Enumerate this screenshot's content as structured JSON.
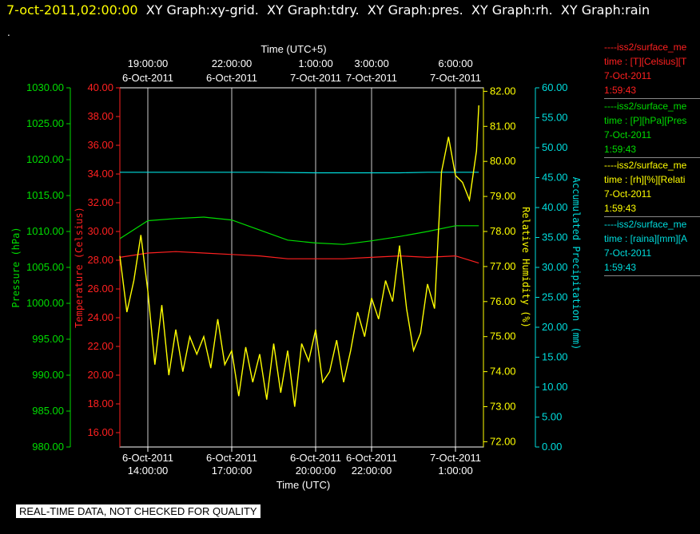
{
  "header": {
    "timestamp": "7-oct-2011,02:00:00",
    "title": "XY Graph:xy-grid.  XY Graph:tdry.  XY Graph:pres.  XY Graph:rh.  XY Graph:rain",
    "dot": "."
  },
  "notice": "REAL-TIME DATA, NOT CHECKED FOR QUALITY",
  "legend": [
    {
      "name": "----iss2/surface_me",
      "units": "time : [T][Celsius][T",
      "date": "7-Oct-2011",
      "time": "1:59:43",
      "color": "#ff2020"
    },
    {
      "name": "----iss2/surface_me",
      "units": "time : [P][hPa][Pres",
      "date": "7-Oct-2011",
      "time": "1:59:43",
      "color": "#00dd00"
    },
    {
      "name": "----iss2/surface_me",
      "units": "time : [rh][%][Relati",
      "date": "7-Oct-2011",
      "time": "1:59:43",
      "color": "#ffff00"
    },
    {
      "name": "----iss2/surface_me",
      "units": "time : [raina][mm][A",
      "date": "7-Oct-2011",
      "time": "1:59:43",
      "color": "#00dddd"
    }
  ],
  "chart_data": {
    "type": "line",
    "xlabel": "Time (UTC)",
    "x2label": "Time (UTC+5)",
    "xlim": [
      "2011-10-06 13:00",
      "2011-10-07 02:00"
    ],
    "grid": true,
    "bottom_ticks": [
      {
        "date": "6-Oct-2011",
        "time": "14:00:00",
        "x": "2011-10-06 14:00"
      },
      {
        "date": "6-Oct-2011",
        "time": "17:00:00",
        "x": "2011-10-06 17:00"
      },
      {
        "date": "6-Oct-2011",
        "time": "20:00:00",
        "x": "2011-10-06 20:00"
      },
      {
        "date": "6-Oct-2011",
        "time": "22:00:00",
        "x": "2011-10-06 22:00"
      },
      {
        "date": "7-Oct-2011",
        "time": "1:00:00",
        "x": "2011-10-07 01:00"
      }
    ],
    "top_ticks": [
      {
        "time": "19:00:00",
        "date": "6-Oct-2011",
        "x": "2011-10-06 14:00"
      },
      {
        "time": "22:00:00",
        "date": "6-Oct-2011",
        "x": "2011-10-06 17:00"
      },
      {
        "time": "1:00:00",
        "date": "7-Oct-2011",
        "x": "2011-10-06 20:00"
      },
      {
        "time": "3:00:00",
        "date": "7-Oct-2011",
        "x": "2011-10-06 22:00"
      },
      {
        "time": "6:00:00",
        "date": "7-Oct-2011",
        "x": "2011-10-07 01:00"
      }
    ],
    "axes": [
      {
        "id": "pres",
        "label": "Pressure (hPa)",
        "color": "#00dd00",
        "min": 980,
        "max": 1030,
        "ticks": [
          "980.00",
          "985.00",
          "990.00",
          "995.00",
          "1000.00",
          "1005.00",
          "1010.00",
          "1015.00",
          "1020.00",
          "1025.00",
          "1030.00"
        ]
      },
      {
        "id": "temp",
        "label": "Temperature (Celsius)",
        "color": "#ff2020",
        "min": 15,
        "max": 40,
        "ticks": [
          "16.00",
          "18.00",
          "20.00",
          "22.00",
          "24.00",
          "26.00",
          "28.00",
          "30.00",
          "32.00",
          "34.00",
          "36.00",
          "38.00",
          "40.00"
        ]
      },
      {
        "id": "rh",
        "label": "Relative Humidity (%)",
        "color": "#ffff00",
        "min": 71.85,
        "max": 82.1,
        "ticks": [
          "72.00",
          "73.00",
          "74.00",
          "75.00",
          "76.00",
          "77.00",
          "78.00",
          "79.00",
          "80.00",
          "81.00",
          "82.00"
        ]
      },
      {
        "id": "rain",
        "label": "Accumulated Precipitation (mm)",
        "color": "#00dddd",
        "min": 0,
        "max": 60,
        "ticks": [
          "0.00",
          "5.00",
          "10.00",
          "15.00",
          "20.00",
          "25.00",
          "30.00",
          "35.00",
          "40.00",
          "45.00",
          "50.00",
          "55.00",
          "60.00"
        ]
      }
    ],
    "series": [
      {
        "axis": "temp",
        "color": "#ff2020",
        "points": [
          [
            "2011-10-06 13:00",
            28.2
          ],
          [
            "2011-10-06 14:00",
            28.5
          ],
          [
            "2011-10-06 15:00",
            28.6
          ],
          [
            "2011-10-06 16:00",
            28.5
          ],
          [
            "2011-10-06 17:00",
            28.4
          ],
          [
            "2011-10-06 18:00",
            28.3
          ],
          [
            "2011-10-06 19:00",
            28.1
          ],
          [
            "2011-10-06 20:00",
            28.1
          ],
          [
            "2011-10-06 21:00",
            28.1
          ],
          [
            "2011-10-06 22:00",
            28.2
          ],
          [
            "2011-10-06 23:00",
            28.3
          ],
          [
            "2011-10-07 00:00",
            28.2
          ],
          [
            "2011-10-07 01:00",
            28.3
          ],
          [
            "2011-10-07 01:50",
            27.8
          ]
        ]
      },
      {
        "axis": "pres",
        "color": "#00dd00",
        "points": [
          [
            "2011-10-06 13:00",
            1009.0
          ],
          [
            "2011-10-06 14:00",
            1011.5
          ],
          [
            "2011-10-06 15:00",
            1011.8
          ],
          [
            "2011-10-06 16:00",
            1012.0
          ],
          [
            "2011-10-06 17:00",
            1011.6
          ],
          [
            "2011-10-06 18:00",
            1010.2
          ],
          [
            "2011-10-06 19:00",
            1008.8
          ],
          [
            "2011-10-06 20:00",
            1008.4
          ],
          [
            "2011-10-06 21:00",
            1008.2
          ],
          [
            "2011-10-06 22:00",
            1008.7
          ],
          [
            "2011-10-06 23:00",
            1009.3
          ],
          [
            "2011-10-07 00:00",
            1010.0
          ],
          [
            "2011-10-07 01:00",
            1010.8
          ],
          [
            "2011-10-07 01:50",
            1010.8
          ]
        ]
      },
      {
        "axis": "rain",
        "color": "#00dddd",
        "points": [
          [
            "2011-10-06 13:00",
            45.9
          ],
          [
            "2011-10-06 18:00",
            45.9
          ],
          [
            "2011-10-06 20:00",
            45.8
          ],
          [
            "2011-10-06 23:00",
            45.8
          ],
          [
            "2011-10-07 00:00",
            45.9
          ],
          [
            "2011-10-07 01:50",
            45.9
          ]
        ]
      },
      {
        "axis": "rh",
        "color": "#ffff00",
        "points": [
          [
            "2011-10-06 13:00",
            77.3
          ],
          [
            "2011-10-06 13:15",
            75.7
          ],
          [
            "2011-10-06 13:30",
            76.6
          ],
          [
            "2011-10-06 13:45",
            77.9
          ],
          [
            "2011-10-06 14:00",
            76.3
          ],
          [
            "2011-10-06 14:15",
            74.2
          ],
          [
            "2011-10-06 14:30",
            75.9
          ],
          [
            "2011-10-06 14:45",
            73.9
          ],
          [
            "2011-10-06 15:00",
            75.2
          ],
          [
            "2011-10-06 15:15",
            74.0
          ],
          [
            "2011-10-06 15:30",
            75.0
          ],
          [
            "2011-10-06 15:45",
            74.5
          ],
          [
            "2011-10-06 16:00",
            75.0
          ],
          [
            "2011-10-06 16:15",
            74.1
          ],
          [
            "2011-10-06 16:30",
            75.5
          ],
          [
            "2011-10-06 16:45",
            74.2
          ],
          [
            "2011-10-06 17:00",
            74.6
          ],
          [
            "2011-10-06 17:15",
            73.3
          ],
          [
            "2011-10-06 17:30",
            74.7
          ],
          [
            "2011-10-06 17:45",
            73.7
          ],
          [
            "2011-10-06 18:00",
            74.5
          ],
          [
            "2011-10-06 18:15",
            73.2
          ],
          [
            "2011-10-06 18:30",
            74.8
          ],
          [
            "2011-10-06 18:45",
            73.4
          ],
          [
            "2011-10-06 19:00",
            74.6
          ],
          [
            "2011-10-06 19:15",
            73.0
          ],
          [
            "2011-10-06 19:30",
            74.8
          ],
          [
            "2011-10-06 19:45",
            74.3
          ],
          [
            "2011-10-06 20:00",
            75.2
          ],
          [
            "2011-10-06 20:15",
            73.7
          ],
          [
            "2011-10-06 20:30",
            74.0
          ],
          [
            "2011-10-06 20:45",
            74.9
          ],
          [
            "2011-10-06 21:00",
            73.7
          ],
          [
            "2011-10-06 21:15",
            74.6
          ],
          [
            "2011-10-06 21:30",
            75.7
          ],
          [
            "2011-10-06 21:45",
            75.0
          ],
          [
            "2011-10-06 22:00",
            76.1
          ],
          [
            "2011-10-06 22:15",
            75.5
          ],
          [
            "2011-10-06 22:30",
            76.6
          ],
          [
            "2011-10-06 22:45",
            76.0
          ],
          [
            "2011-10-06 23:00",
            77.6
          ],
          [
            "2011-10-06 23:15",
            75.8
          ],
          [
            "2011-10-06 23:30",
            74.6
          ],
          [
            "2011-10-06 23:45",
            75.1
          ],
          [
            "2011-10-07 00:00",
            76.5
          ],
          [
            "2011-10-07 00:15",
            75.8
          ],
          [
            "2011-10-07 00:30",
            79.7
          ],
          [
            "2011-10-07 00:45",
            80.7
          ],
          [
            "2011-10-07 01:00",
            79.6
          ],
          [
            "2011-10-07 01:15",
            79.4
          ],
          [
            "2011-10-07 01:30",
            78.9
          ],
          [
            "2011-10-07 01:45",
            80.3
          ],
          [
            "2011-10-07 01:50",
            81.6
          ]
        ]
      }
    ]
  }
}
